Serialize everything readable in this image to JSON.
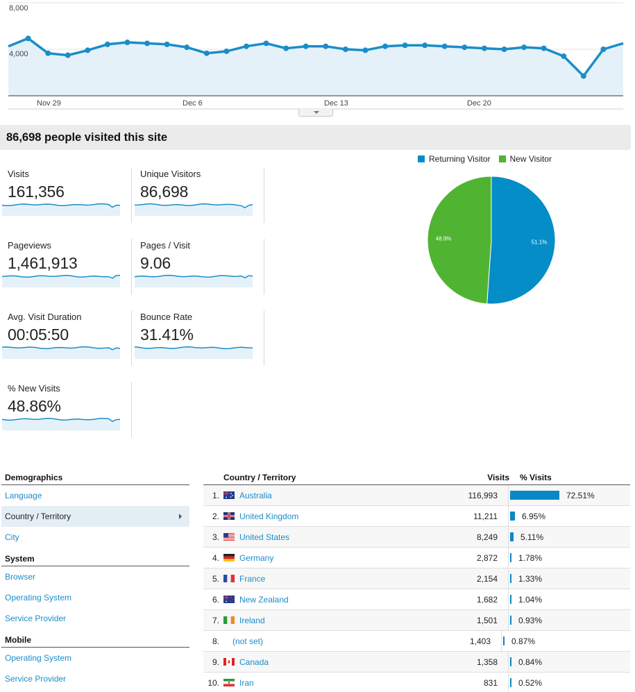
{
  "trend": {
    "y_ticks": [
      "8,000",
      "4,000"
    ],
    "x_ticks": [
      "Nov 29",
      "Dec 6",
      "Dec 13",
      "Dec 20"
    ],
    "y_max": 9400,
    "values": [
      5000,
      5800,
      4300,
      4100,
      4600,
      5200,
      5400,
      5300,
      5200,
      4900,
      4300,
      4500,
      5000,
      5300,
      4800,
      5000,
      5000,
      4700,
      4600,
      5000,
      5100,
      5100,
      5000,
      4900,
      4800,
      4700,
      4900,
      4800,
      4000,
      2000,
      4700,
      5300
    ],
    "line_color": "#1a8dc8",
    "fill_color": "#e5f1f8"
  },
  "summary": {
    "title": "86,698 people visited this site"
  },
  "metrics": [
    {
      "label": "Visits",
      "value": "161,356"
    },
    {
      "label": "Unique Visitors",
      "value": "86,698"
    },
    {
      "label": "Pageviews",
      "value": "1,461,913"
    },
    {
      "label": "Pages / Visit",
      "value": "9.06"
    },
    {
      "label": "Avg. Visit Duration",
      "value": "00:05:50"
    },
    {
      "label": "Bounce Rate",
      "value": "31.41%"
    },
    {
      "label": "% New Visits",
      "value": "48.86%"
    }
  ],
  "pie": {
    "legend": [
      {
        "name": "Returning Visitor",
        "color": "#058dc7"
      },
      {
        "name": "New Visitor",
        "color": "#50b432"
      }
    ],
    "slices": [
      {
        "label": "51.1%",
        "value": 51.1,
        "color": "#058dc7"
      },
      {
        "label": "48.9%",
        "value": 48.9,
        "color": "#50b432"
      }
    ]
  },
  "nav": {
    "demographics": {
      "heading": "Demographics",
      "items": [
        "Language",
        "Country / Territory",
        "City"
      ]
    },
    "system": {
      "heading": "System",
      "items": [
        "Browser",
        "Operating System",
        "Service Provider"
      ]
    },
    "mobile": {
      "heading": "Mobile",
      "items": [
        "Operating System",
        "Service Provider"
      ]
    }
  },
  "table": {
    "headers": {
      "country": "Country / Territory",
      "visits": "Visits",
      "pct": "% Visits"
    },
    "rows": [
      {
        "rank": "1.",
        "flag": "au-flag-icon",
        "name": "Australia",
        "visits": "116,993",
        "pct": "72.51%",
        "share": 72.51
      },
      {
        "rank": "2.",
        "flag": "gb-flag-icon",
        "name": "United Kingdom",
        "visits": "11,211",
        "pct": "6.95%",
        "share": 6.95
      },
      {
        "rank": "3.",
        "flag": "us-flag-icon",
        "name": "United States",
        "visits": "8,249",
        "pct": "5.11%",
        "share": 5.11
      },
      {
        "rank": "4.",
        "flag": "de-flag-icon",
        "name": "Germany",
        "visits": "2,872",
        "pct": "1.78%",
        "share": 1.78
      },
      {
        "rank": "5.",
        "flag": "fr-flag-icon",
        "name": "France",
        "visits": "2,154",
        "pct": "1.33%",
        "share": 1.33
      },
      {
        "rank": "6.",
        "flag": "nz-flag-icon",
        "name": "New Zealand",
        "visits": "1,682",
        "pct": "1.04%",
        "share": 1.04
      },
      {
        "rank": "7.",
        "flag": "ie-flag-icon",
        "name": "Ireland",
        "visits": "1,501",
        "pct": "0.93%",
        "share": 0.93
      },
      {
        "rank": "8.",
        "flag": "",
        "name": "(not set)",
        "visits": "1,403",
        "pct": "0.87%",
        "share": 0.87
      },
      {
        "rank": "9.",
        "flag": "ca-flag-icon",
        "name": "Canada",
        "visits": "1,358",
        "pct": "0.84%",
        "share": 0.84
      },
      {
        "rank": "10.",
        "flag": "ir-flag-icon",
        "name": "Iran",
        "visits": "831",
        "pct": "0.52%",
        "share": 0.52
      }
    ]
  }
}
